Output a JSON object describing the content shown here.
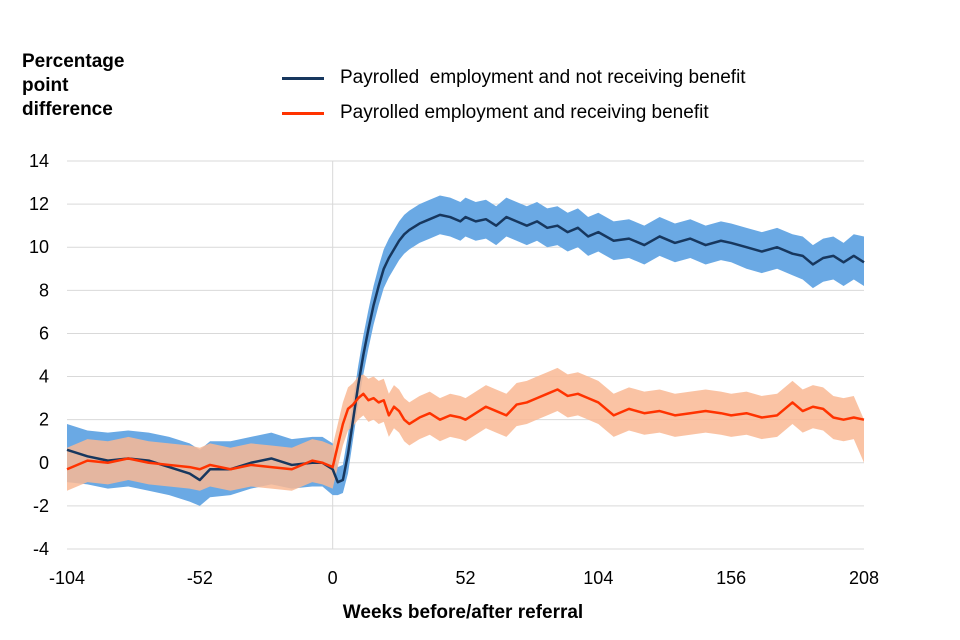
{
  "chart_data": {
    "type": "line",
    "title": "",
    "ylabel_lines": [
      "Percentage",
      "point",
      "difference"
    ],
    "xlabel": "Weeks before/after referral",
    "xlim": [
      -104,
      208
    ],
    "ylim": [
      -4,
      14
    ],
    "xticks": [
      -104,
      -52,
      0,
      52,
      104,
      156,
      208
    ],
    "yticks": [
      -4,
      -2,
      0,
      2,
      4,
      6,
      8,
      10,
      12,
      14
    ],
    "grid": "horizontal",
    "vline_at": 0,
    "legend_position": "top",
    "series": [
      {
        "name": "Payrolled  employment and not receiving benefit",
        "color": "#17375e",
        "band_color": "#6aa9e4",
        "x": [
          -104,
          -96,
          -88,
          -80,
          -72,
          -64,
          -56,
          -52,
          -48,
          -40,
          -32,
          -24,
          -16,
          -8,
          -4,
          0,
          2,
          4,
          6,
          8,
          10,
          12,
          14,
          16,
          18,
          20,
          22,
          24,
          26,
          28,
          30,
          34,
          38,
          42,
          46,
          50,
          52,
          56,
          60,
          64,
          68,
          72,
          76,
          80,
          84,
          88,
          92,
          96,
          100,
          104,
          110,
          116,
          122,
          128,
          134,
          140,
          146,
          152,
          156,
          162,
          168,
          174,
          180,
          184,
          188,
          192,
          196,
          200,
          204,
          208
        ],
        "values": [
          0.6,
          0.3,
          0.1,
          0.2,
          0.1,
          -0.2,
          -0.5,
          -0.8,
          -0.3,
          -0.3,
          0.0,
          0.2,
          -0.1,
          0.0,
          0.0,
          -0.3,
          -0.9,
          -0.8,
          0.4,
          2.0,
          3.6,
          5.0,
          6.2,
          7.3,
          8.2,
          9.0,
          9.5,
          9.9,
          10.3,
          10.6,
          10.8,
          11.1,
          11.3,
          11.5,
          11.4,
          11.2,
          11.4,
          11.2,
          11.3,
          11.0,
          11.4,
          11.2,
          11.0,
          11.2,
          10.9,
          11.0,
          10.7,
          10.9,
          10.5,
          10.7,
          10.3,
          10.4,
          10.1,
          10.5,
          10.2,
          10.4,
          10.1,
          10.3,
          10.2,
          10.0,
          9.8,
          10.0,
          9.7,
          9.6,
          9.2,
          9.5,
          9.6,
          9.3,
          9.6,
          9.3
        ],
        "lower": [
          -0.9,
          -1.0,
          -1.2,
          -1.1,
          -1.3,
          -1.5,
          -1.8,
          -2.0,
          -1.6,
          -1.5,
          -1.2,
          -1.0,
          -1.2,
          -1.1,
          -1.1,
          -1.5,
          -1.5,
          -1.4,
          -0.5,
          1.1,
          2.7,
          4.1,
          5.3,
          6.4,
          7.3,
          8.1,
          8.6,
          9.0,
          9.4,
          9.7,
          9.9,
          10.2,
          10.4,
          10.6,
          10.5,
          10.3,
          10.5,
          10.3,
          10.4,
          10.1,
          10.5,
          10.3,
          10.1,
          10.3,
          10.0,
          10.1,
          9.8,
          10.0,
          9.6,
          9.8,
          9.4,
          9.5,
          9.2,
          9.6,
          9.3,
          9.5,
          9.2,
          9.4,
          9.3,
          9.0,
          8.8,
          9.0,
          8.7,
          8.5,
          8.1,
          8.4,
          8.5,
          8.2,
          8.5,
          8.2
        ],
        "upper": [
          1.8,
          1.5,
          1.4,
          1.5,
          1.4,
          1.2,
          0.9,
          0.6,
          1.0,
          1.0,
          1.2,
          1.4,
          1.1,
          1.2,
          1.2,
          0.9,
          -0.2,
          -0.1,
          1.3,
          2.9,
          4.5,
          5.9,
          7.1,
          8.2,
          9.1,
          9.9,
          10.4,
          10.8,
          11.2,
          11.5,
          11.7,
          12.0,
          12.2,
          12.4,
          12.3,
          12.1,
          12.3,
          12.1,
          12.2,
          11.9,
          12.3,
          12.1,
          11.9,
          12.1,
          11.8,
          11.9,
          11.6,
          11.8,
          11.4,
          11.6,
          11.2,
          11.3,
          11.0,
          11.4,
          11.1,
          11.3,
          11.0,
          11.2,
          11.1,
          10.9,
          10.7,
          10.9,
          10.6,
          10.5,
          10.1,
          10.4,
          10.5,
          10.2,
          10.6,
          10.5
        ]
      },
      {
        "name": "Payrolled employment and receiving benefit",
        "color": "#ff3300",
        "band_color": "#f9b894",
        "x": [
          -104,
          -96,
          -88,
          -80,
          -72,
          -64,
          -56,
          -52,
          -48,
          -40,
          -32,
          -24,
          -16,
          -8,
          -4,
          0,
          2,
          4,
          6,
          8,
          10,
          12,
          14,
          16,
          18,
          20,
          22,
          24,
          26,
          28,
          30,
          34,
          38,
          42,
          46,
          50,
          52,
          56,
          60,
          64,
          68,
          72,
          76,
          80,
          84,
          88,
          92,
          96,
          100,
          104,
          110,
          116,
          122,
          128,
          134,
          140,
          146,
          152,
          156,
          162,
          168,
          174,
          180,
          184,
          188,
          192,
          196,
          200,
          204,
          208
        ],
        "values": [
          -0.3,
          0.1,
          0.0,
          0.2,
          0.0,
          -0.1,
          -0.2,
          -0.3,
          -0.1,
          -0.3,
          -0.1,
          -0.2,
          -0.3,
          0.1,
          0.0,
          -0.2,
          0.8,
          1.8,
          2.5,
          2.7,
          3.0,
          3.2,
          2.9,
          3.0,
          2.8,
          2.9,
          2.2,
          2.6,
          2.4,
          2.0,
          1.8,
          2.1,
          2.3,
          2.0,
          2.2,
          2.1,
          2.0,
          2.3,
          2.6,
          2.4,
          2.2,
          2.7,
          2.8,
          3.0,
          3.2,
          3.4,
          3.1,
          3.2,
          3.0,
          2.8,
          2.2,
          2.5,
          2.3,
          2.4,
          2.2,
          2.3,
          2.4,
          2.3,
          2.2,
          2.3,
          2.1,
          2.2,
          2.8,
          2.4,
          2.6,
          2.5,
          2.1,
          2.0,
          2.1,
          2.0
        ],
        "lower": [
          -1.3,
          -0.9,
          -1.0,
          -0.8,
          -1.0,
          -1.1,
          -1.2,
          -1.3,
          -1.1,
          -1.3,
          -1.1,
          -1.2,
          -1.3,
          -0.9,
          -1.0,
          -1.2,
          -0.2,
          0.8,
          1.5,
          1.7,
          2.0,
          2.2,
          1.9,
          2.0,
          1.8,
          1.9,
          1.2,
          1.6,
          1.4,
          1.0,
          0.8,
          1.1,
          1.3,
          1.0,
          1.2,
          1.1,
          1.0,
          1.3,
          1.6,
          1.4,
          1.2,
          1.7,
          1.8,
          2.0,
          2.2,
          2.4,
          2.1,
          2.2,
          2.0,
          1.8,
          1.2,
          1.5,
          1.3,
          1.4,
          1.2,
          1.3,
          1.4,
          1.3,
          1.2,
          1.3,
          1.1,
          1.2,
          1.8,
          1.4,
          1.6,
          1.5,
          1.1,
          1.0,
          1.1,
          0.0
        ],
        "upper": [
          0.7,
          1.1,
          1.0,
          1.2,
          1.0,
          0.9,
          0.8,
          0.7,
          0.9,
          0.7,
          0.9,
          0.8,
          0.7,
          1.1,
          1.0,
          0.8,
          1.8,
          2.8,
          3.5,
          3.7,
          4.0,
          4.1,
          3.9,
          4.0,
          3.8,
          3.9,
          3.2,
          3.6,
          3.4,
          3.0,
          2.8,
          3.1,
          3.3,
          3.0,
          3.2,
          3.1,
          3.0,
          3.3,
          3.6,
          3.4,
          3.2,
          3.7,
          3.8,
          4.0,
          4.2,
          4.4,
          4.1,
          4.2,
          4.0,
          3.8,
          3.2,
          3.5,
          3.3,
          3.4,
          3.2,
          3.3,
          3.4,
          3.3,
          3.2,
          3.3,
          3.1,
          3.2,
          3.8,
          3.4,
          3.6,
          3.5,
          3.1,
          3.0,
          3.1,
          2.0
        ]
      }
    ]
  }
}
